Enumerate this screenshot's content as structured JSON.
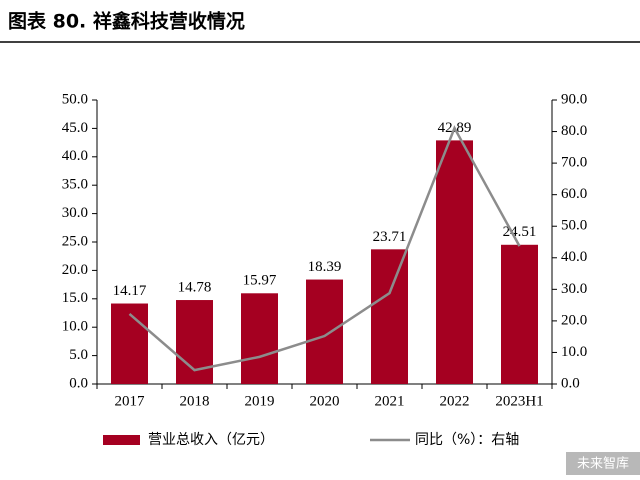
{
  "chart_data": {
    "type": "bar_line",
    "title": "图表 80. 祥鑫科技营收情况",
    "categories": [
      "2017",
      "2018",
      "2019",
      "2020",
      "2021",
      "2022",
      "2023H1"
    ],
    "series": [
      {
        "name": "营业总收入（亿元）",
        "type": "bar",
        "color": "#a50021",
        "values": [
          14.17,
          14.78,
          15.97,
          18.39,
          23.71,
          42.89,
          24.51
        ]
      },
      {
        "name": "同比（%）：右轴",
        "type": "line",
        "axis": "y2",
        "color": "#8c8c8c",
        "values": [
          22.2,
          4.4,
          8.6,
          15.2,
          28.8,
          81.1,
          43.7
        ]
      }
    ],
    "ylim": [
      0,
      50
    ],
    "yticks": [
      {
        "value": 0,
        "label": "0.0"
      },
      {
        "value": 5,
        "label": "5.0"
      },
      {
        "value": 10,
        "label": "10.0"
      },
      {
        "value": 15,
        "label": "15.0"
      },
      {
        "value": 20,
        "label": "20.0"
      },
      {
        "value": 25,
        "label": "25.0"
      },
      {
        "value": 30,
        "label": "30.0"
      },
      {
        "value": 35,
        "label": "35.0"
      },
      {
        "value": 40,
        "label": "40.0"
      },
      {
        "value": 45,
        "label": "45.0"
      },
      {
        "value": 50,
        "label": "50.0"
      }
    ],
    "y2lim": [
      0,
      90
    ],
    "y2ticks": [
      {
        "value": 0,
        "label": "0.0"
      },
      {
        "value": 10,
        "label": "10.0"
      },
      {
        "value": 20,
        "label": "20.0"
      },
      {
        "value": 30,
        "label": "30.0"
      },
      {
        "value": 40,
        "label": "40.0"
      },
      {
        "value": 50,
        "label": "50.0"
      },
      {
        "value": 60,
        "label": "60.0"
      },
      {
        "value": 70,
        "label": "70.0"
      },
      {
        "value": 80,
        "label": "80.0"
      },
      {
        "value": 90,
        "label": "90.0"
      }
    ],
    "watermark": "未来智库"
  }
}
